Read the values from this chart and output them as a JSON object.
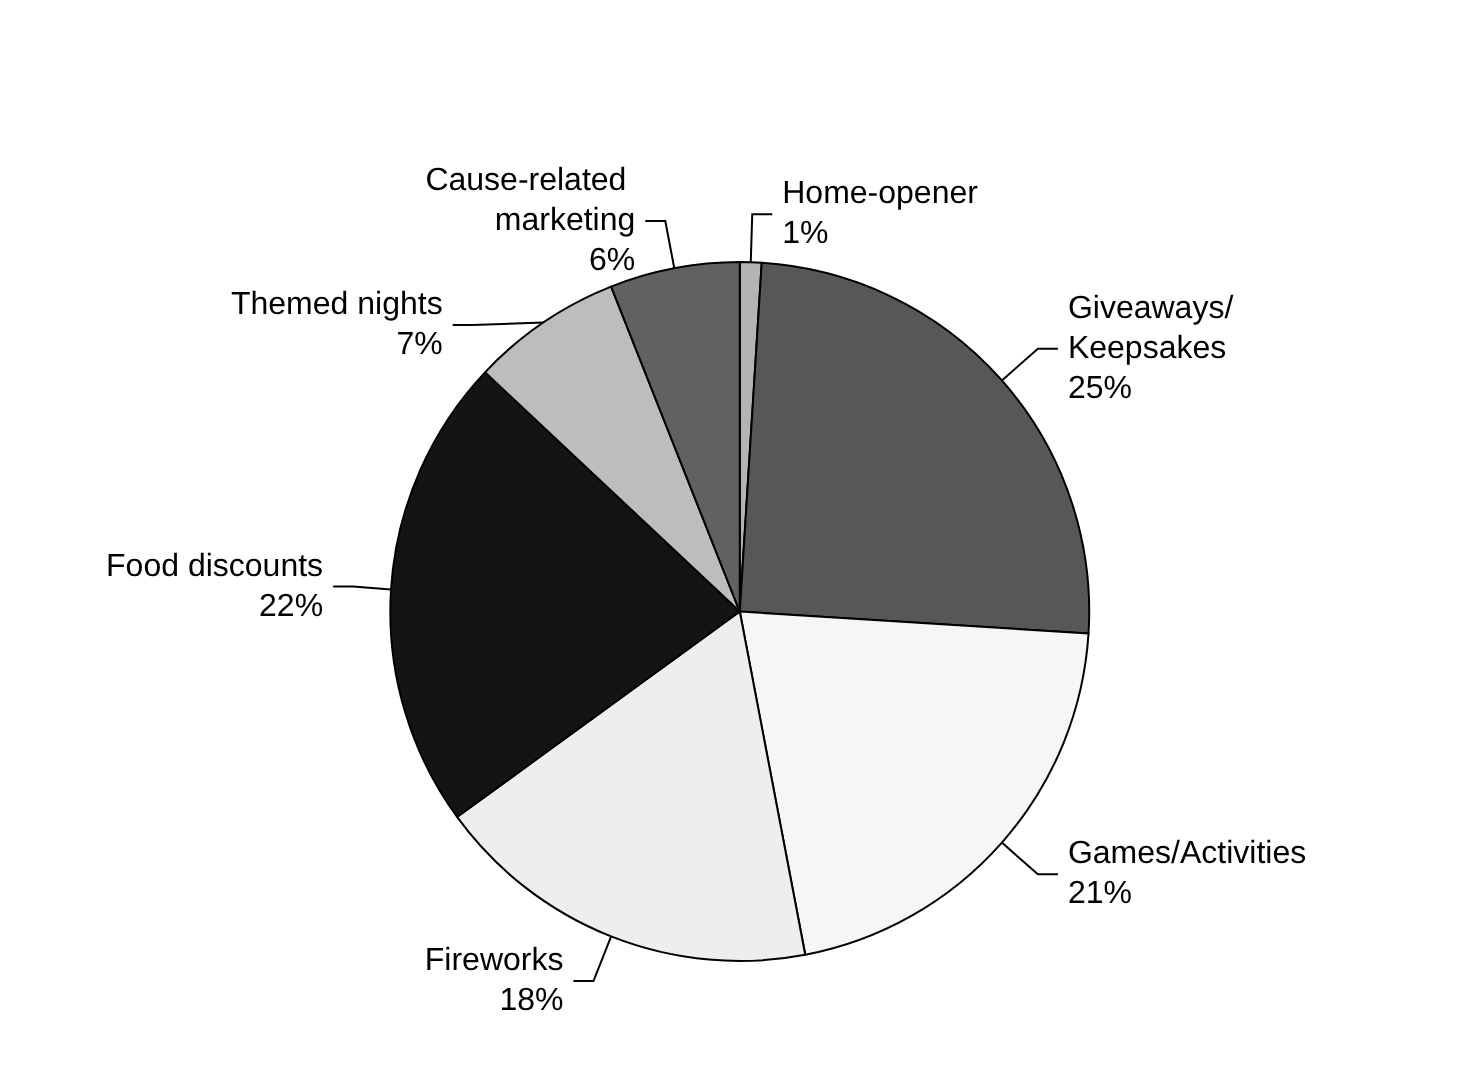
{
  "chart_data": {
    "type": "pie",
    "categories": [
      "Home-opener",
      "Giveaways/Keepsakes",
      "Games/Activities",
      "Fireworks",
      "Food discounts",
      "Themed nights",
      "Cause-related marketing"
    ],
    "values": [
      1,
      25,
      21,
      18,
      22,
      7,
      6
    ],
    "value_labels": [
      "1%",
      "25%",
      "21%",
      "18%",
      "22%",
      "7%",
      "6%"
    ],
    "colors": [
      "#b4b4b4",
      "#575757",
      "#f6f6f6",
      "#eeeeee",
      "#141414",
      "#bdbdbd",
      "#616161"
    ],
    "legend": false
  }
}
